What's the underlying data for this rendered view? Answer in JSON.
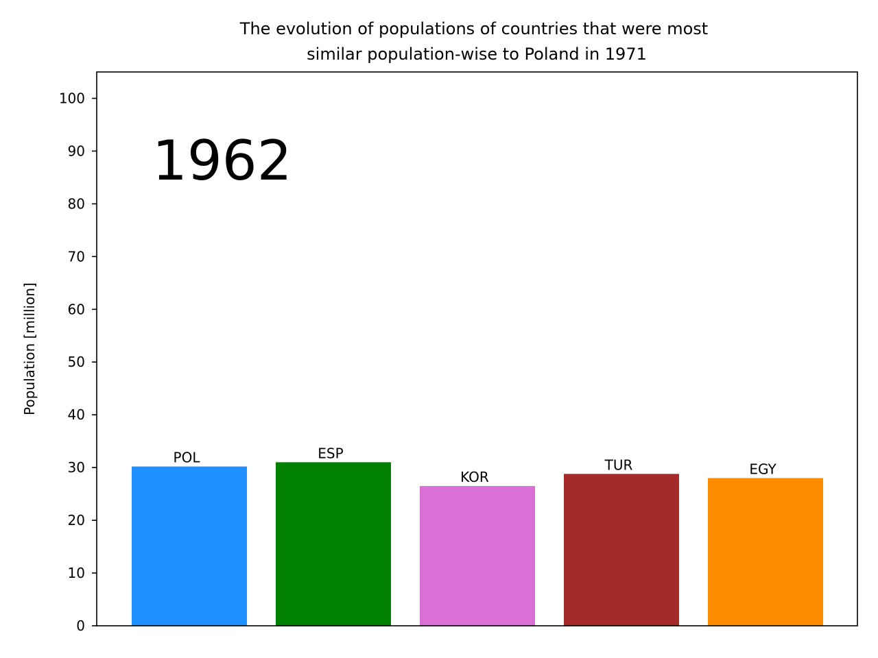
{
  "chart_data": {
    "type": "bar",
    "title_lines": [
      "The evolution of populations of countries that were most",
      "similar population-wise to Poland in 1971"
    ],
    "ylabel": "Population [million]",
    "xlabel": "",
    "year_annotation": "1962",
    "ylim": [
      0,
      105
    ],
    "yticks": [
      0,
      10,
      20,
      30,
      40,
      50,
      60,
      70,
      80,
      90,
      100
    ],
    "grid": false,
    "legend": false,
    "categories": [
      "POL",
      "ESP",
      "KOR",
      "TUR",
      "EGY"
    ],
    "values": [
      30.2,
      31.0,
      26.5,
      28.8,
      28.0
    ],
    "colors": [
      "#1e90ff",
      "#008000",
      "#da70d6",
      "#a52a2a",
      "#ff8c00"
    ]
  }
}
